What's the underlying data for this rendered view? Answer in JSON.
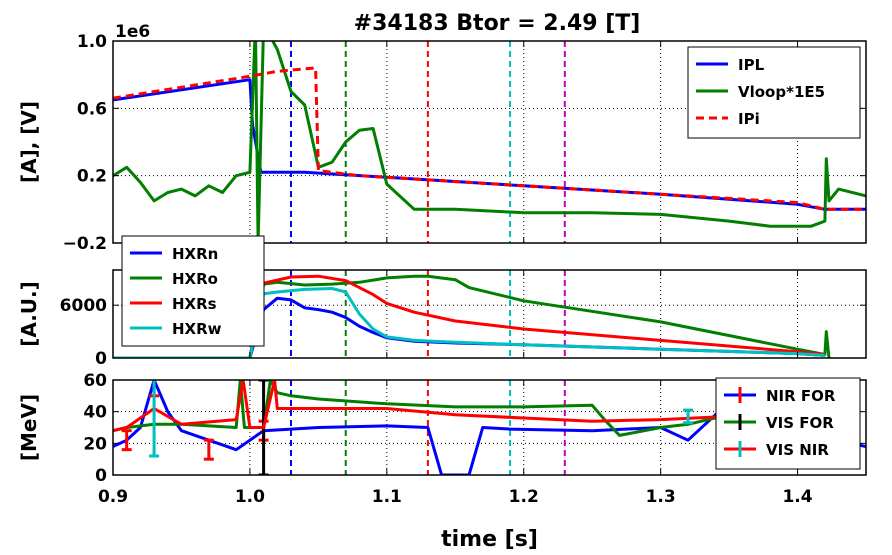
{
  "figure": {
    "title": "#34183 Btor = 2.49 [T]",
    "xlabel": "time [s]",
    "x_ticks": [
      "0.9",
      "1.0",
      "1.1",
      "1.2",
      "1.3",
      "1.4"
    ]
  },
  "chart_data": [
    {
      "type": "line",
      "panel": "top",
      "ylabel": "[A], [V]",
      "offset_text": "1e6",
      "y_ticks": [
        "1.0",
        "0.6",
        "0.2",
        "−0.2"
      ],
      "xlim": [
        0.9,
        1.45
      ],
      "ylim": [
        -0.2,
        1.0
      ],
      "grid": true,
      "legend_position": "top-right",
      "series": [
        {
          "name": "IPL",
          "color": "#0000ff",
          "style": "solid",
          "x": [
            0.9,
            1.0,
            1.002,
            1.008,
            1.04,
            1.1,
            1.2,
            1.3,
            1.4,
            1.42,
            1.45
          ],
          "y": [
            0.65,
            0.77,
            0.5,
            0.22,
            0.22,
            0.19,
            0.14,
            0.09,
            0.03,
            0.0,
            0.0
          ]
        },
        {
          "name": "Vloop*1E5",
          "color": "#007f00",
          "style": "solid",
          "x": [
            0.9,
            0.91,
            0.92,
            0.93,
            0.94,
            0.95,
            0.96,
            0.97,
            0.98,
            0.99,
            1.0,
            1.004,
            1.006,
            1.01,
            1.02,
            1.03,
            1.04,
            1.05,
            1.06,
            1.07,
            1.08,
            1.09,
            1.1,
            1.12,
            1.15,
            1.2,
            1.25,
            1.3,
            1.35,
            1.38,
            1.41,
            1.42,
            1.421,
            1.423,
            1.43,
            1.45
          ],
          "y": [
            0.2,
            0.25,
            0.16,
            0.05,
            0.1,
            0.12,
            0.08,
            0.14,
            0.1,
            0.2,
            0.22,
            1.1,
            -0.2,
            1.1,
            0.95,
            0.7,
            0.62,
            0.25,
            0.28,
            0.4,
            0.47,
            0.48,
            0.15,
            0.0,
            0.0,
            -0.02,
            -0.02,
            -0.03,
            -0.07,
            -0.1,
            -0.1,
            -0.07,
            0.3,
            0.05,
            0.12,
            0.08
          ]
        },
        {
          "name": "IPi",
          "color": "#ff0000",
          "style": "dashed",
          "x": [
            0.9,
            1.0,
            1.02,
            1.048,
            1.05,
            1.06,
            1.08,
            1.1,
            1.2,
            1.3,
            1.4,
            1.42,
            1.45
          ],
          "y": [
            0.66,
            0.79,
            0.82,
            0.84,
            0.23,
            0.22,
            0.2,
            0.19,
            0.14,
            0.09,
            0.04,
            0.0,
            0.0
          ]
        }
      ],
      "vlines": [
        {
          "x": 1.03,
          "color": "#0000ff"
        },
        {
          "x": 1.07,
          "color": "#007f00"
        },
        {
          "x": 1.13,
          "color": "#ff0000"
        },
        {
          "x": 1.19,
          "color": "#00bfbf"
        },
        {
          "x": 1.23,
          "color": "#bf00bf"
        }
      ]
    },
    {
      "type": "line",
      "panel": "middle",
      "ylabel": "[A.U.]",
      "y_ticks": [
        "6000",
        "0"
      ],
      "xlim": [
        0.9,
        1.45
      ],
      "ylim": [
        0,
        10000
      ],
      "grid": true,
      "legend_position": "top-left",
      "series": [
        {
          "name": "HXRn",
          "color": "#0000ff",
          "x": [
            0.9,
            1.0,
            1.01,
            1.02,
            1.03,
            1.04,
            1.05,
            1.06,
            1.07,
            1.08,
            1.09,
            1.1,
            1.12,
            1.15,
            1.2,
            1.3,
            1.4,
            1.42
          ],
          "y": [
            0,
            0,
            5500,
            6800,
            6600,
            5700,
            5500,
            5200,
            4600,
            3600,
            2900,
            2300,
            1900,
            1700,
            1500,
            1000,
            500,
            300
          ]
        },
        {
          "name": "HXRo",
          "color": "#007f00",
          "x": [
            0.9,
            1.0,
            1.01,
            1.02,
            1.04,
            1.06,
            1.08,
            1.1,
            1.12,
            1.13,
            1.15,
            1.16,
            1.2,
            1.3,
            1.4,
            1.42,
            1.421,
            1.423
          ],
          "y": [
            0,
            0,
            8400,
            8600,
            8300,
            8400,
            8600,
            9100,
            9300,
            9300,
            8900,
            8000,
            6500,
            4100,
            1000,
            400,
            3000,
            0
          ]
        },
        {
          "name": "HXRs",
          "color": "#ff0000",
          "x": [
            0.9,
            1.0,
            1.01,
            1.03,
            1.05,
            1.07,
            1.09,
            1.1,
            1.12,
            1.15,
            1.2,
            1.3,
            1.4,
            1.42
          ],
          "y": [
            0,
            0,
            8500,
            9200,
            9300,
            8800,
            7200,
            6200,
            5200,
            4200,
            3300,
            2000,
            700,
            400
          ]
        },
        {
          "name": "HXRw",
          "color": "#00bfbf",
          "x": [
            0.9,
            1.0,
            1.01,
            1.02,
            1.04,
            1.06,
            1.07,
            1.08,
            1.09,
            1.1,
            1.12,
            1.15,
            1.2,
            1.3,
            1.4,
            1.42
          ],
          "y": [
            0,
            0,
            7300,
            7500,
            7800,
            7900,
            7500,
            5000,
            3300,
            2400,
            2000,
            1800,
            1500,
            1000,
            500,
            300
          ]
        }
      ],
      "vlines": [
        {
          "x": 1.03,
          "color": "#0000ff"
        },
        {
          "x": 1.07,
          "color": "#007f00"
        },
        {
          "x": 1.13,
          "color": "#ff0000"
        },
        {
          "x": 1.19,
          "color": "#00bfbf"
        },
        {
          "x": 1.23,
          "color": "#bf00bf"
        }
      ]
    },
    {
      "type": "line",
      "panel": "bottom",
      "ylabel": "[MeV]",
      "y_ticks": [
        "60",
        "40",
        "20",
        "0"
      ],
      "xlim": [
        0.9,
        1.45
      ],
      "ylim": [
        0,
        60
      ],
      "grid": true,
      "legend_position": "top-right",
      "series": [
        {
          "name": "NIR FOR",
          "color": "#0000ff",
          "errcolor": "#ff0000",
          "x": [
            0.9,
            0.91,
            0.92,
            0.93,
            0.94,
            0.95,
            0.99,
            1.01,
            1.05,
            1.1,
            1.13,
            1.14,
            1.15,
            1.16,
            1.17,
            1.19,
            1.25,
            1.3,
            1.32,
            1.34,
            1.45
          ],
          "y": [
            18,
            22,
            30,
            60,
            40,
            28,
            16,
            28,
            30,
            31,
            30,
            0,
            0,
            0,
            30,
            29,
            28,
            30,
            22,
            38,
            18
          ],
          "err": [
            [
              0.91,
              6
            ],
            [
              0.93,
              10
            ],
            [
              0.97,
              6
            ],
            [
              1.01,
              6
            ]
          ]
        },
        {
          "name": "VIS FOR",
          "color": "#007f00",
          "errcolor": "#000000",
          "x": [
            0.9,
            0.91,
            0.93,
            0.95,
            0.99,
            0.993,
            0.996,
            1.01,
            1.015,
            1.02,
            1.03,
            1.05,
            1.1,
            1.15,
            1.2,
            1.25,
            1.26,
            1.27,
            1.3,
            1.32,
            1.35,
            1.4,
            1.42
          ],
          "y": [
            28,
            30,
            32,
            32,
            30,
            60,
            30,
            30,
            60,
            52,
            50,
            48,
            45,
            43,
            43,
            44,
            34,
            25,
            30,
            32,
            38,
            35,
            33
          ],
          "err": [
            [
              1.01,
              30
            ]
          ]
        },
        {
          "name": "VIS NIR",
          "color": "#ff0000",
          "errcolor": "#00bfbf",
          "x": [
            0.9,
            0.91,
            0.93,
            0.95,
            0.99,
            0.995,
            1.0,
            1.01,
            1.018,
            1.02,
            1.03,
            1.1,
            1.15,
            1.2,
            1.25,
            1.3,
            1.35,
            1.4,
            1.42
          ],
          "y": [
            28,
            30,
            42,
            32,
            35,
            60,
            30,
            30,
            60,
            42,
            42,
            42,
            38,
            36,
            34,
            35,
            37,
            36,
            35
          ],
          "err": [
            [
              0.93,
              30
            ],
            [
              1.32,
              4
            ]
          ]
        }
      ],
      "vlines": [
        {
          "x": 1.03,
          "color": "#0000ff"
        },
        {
          "x": 1.07,
          "color": "#007f00"
        },
        {
          "x": 1.13,
          "color": "#ff0000"
        },
        {
          "x": 1.19,
          "color": "#00bfbf"
        },
        {
          "x": 1.23,
          "color": "#bf00bf"
        }
      ]
    }
  ]
}
